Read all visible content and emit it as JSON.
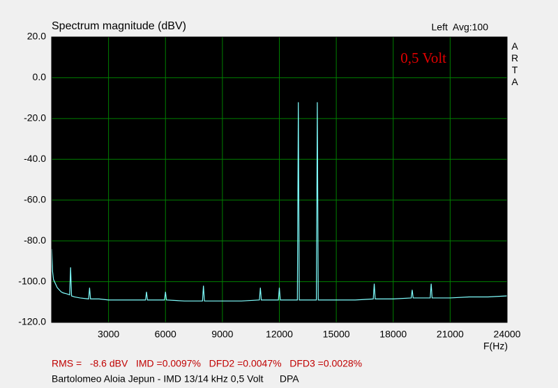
{
  "chart_data": {
    "type": "line",
    "title": "Spectrum magnitude (dBV)",
    "channel_info": "Left  Avg:100",
    "side_label": "ARTA",
    "annotation": "0,5 Volt",
    "x_label": "F(Hz)",
    "stats_line": "RMS =   -8.6 dBV   IMD =0.0097%   DFD2 =0.0047%   DFD3 =0.0028%",
    "footer": "Bartolomeo Aloia Jepun - IMD 13/14 kHz 0,5 Volt      DPA",
    "xlim": [
      0,
      24000
    ],
    "xticks": [
      3000,
      6000,
      9000,
      12000,
      15000,
      18000,
      21000,
      24000
    ],
    "ylim": [
      -120,
      20
    ],
    "yticks": [
      {
        "value": 20,
        "label": "20.0"
      },
      {
        "value": 0,
        "label": "0.0"
      },
      {
        "value": -20,
        "label": "-20.0"
      },
      {
        "value": -40,
        "label": "-40.0"
      },
      {
        "value": -60,
        "label": "-60.0"
      },
      {
        "value": -80,
        "label": "-80.0"
      },
      {
        "value": -100,
        "label": "-100.0"
      },
      {
        "value": -120,
        "label": "-120.0"
      }
    ],
    "grid": true,
    "grid_color": "#008000",
    "background": "#000000",
    "annotation_color": "#e00000",
    "stats_color": "#c00000",
    "x": [
      10,
      50,
      100,
      200,
      300,
      400,
      500,
      600,
      800,
      950,
      1000,
      1050,
      1200,
      1500,
      1950,
      2000,
      2050,
      2500,
      3000,
      4000,
      4950,
      5000,
      5050,
      5950,
      6000,
      6050,
      7000,
      7950,
      8000,
      8050,
      9000,
      10000,
      10950,
      11000,
      11050,
      11950,
      12000,
      12050,
      12950,
      13000,
      13050,
      13950,
      14000,
      14050,
      15000,
      16000,
      16950,
      17000,
      17050,
      18000,
      18950,
      19000,
      19050,
      19950,
      20000,
      20050,
      21000,
      22000,
      23000,
      24000
    ],
    "series": [
      {
        "color": "#80ffff",
        "values": [
          -84,
          -95,
          -99,
          -101,
          -103,
          -104,
          -105,
          -105.5,
          -106,
          -106.5,
          -93,
          -107,
          -107.5,
          -108,
          -108.5,
          -103,
          -108.5,
          -108.5,
          -109,
          -109,
          -109,
          -105,
          -109,
          -109,
          -105,
          -109,
          -109.5,
          -109.5,
          -102,
          -109.5,
          -109.5,
          -109.5,
          -109,
          -103,
          -109,
          -109,
          -103,
          -109,
          -109,
          -12,
          -109,
          -109,
          -12,
          -109,
          -109,
          -109,
          -108.5,
          -101,
          -108.5,
          -108.5,
          -108,
          -104,
          -108,
          -108,
          -101,
          -108,
          -108,
          -107.5,
          -107.5,
          -107
        ]
      }
    ]
  }
}
